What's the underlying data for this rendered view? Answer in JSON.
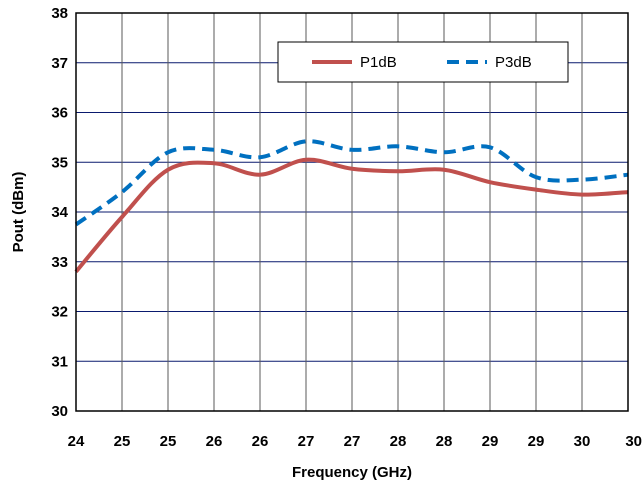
{
  "chart_data": {
    "type": "line",
    "title": "",
    "xlabel": "Frequency (GHz)",
    "ylabel": "Pout (dBm)",
    "x_tick_labels": [
      "24",
      "25",
      "25",
      "26",
      "26",
      "27",
      "27",
      "28",
      "28",
      "29",
      "29",
      "30",
      "30"
    ],
    "ylim": [
      30,
      38
    ],
    "y_ticks": [
      30,
      31,
      32,
      33,
      34,
      35,
      36,
      37,
      38
    ],
    "grid": true,
    "legend_position": "top-right",
    "series": [
      {
        "name": "P1dB",
        "color": "#c0504d",
        "style": "solid",
        "values": [
          32.8,
          33.9,
          34.85,
          34.98,
          34.75,
          35.05,
          34.87,
          34.82,
          34.85,
          34.6,
          34.45,
          34.35,
          34.4
        ]
      },
      {
        "name": "P3dB",
        "color": "#0070c0",
        "style": "dashed",
        "values": [
          33.75,
          34.4,
          35.2,
          35.25,
          35.1,
          35.42,
          35.25,
          35.32,
          35.2,
          35.3,
          34.7,
          34.65,
          34.75
        ]
      }
    ]
  }
}
